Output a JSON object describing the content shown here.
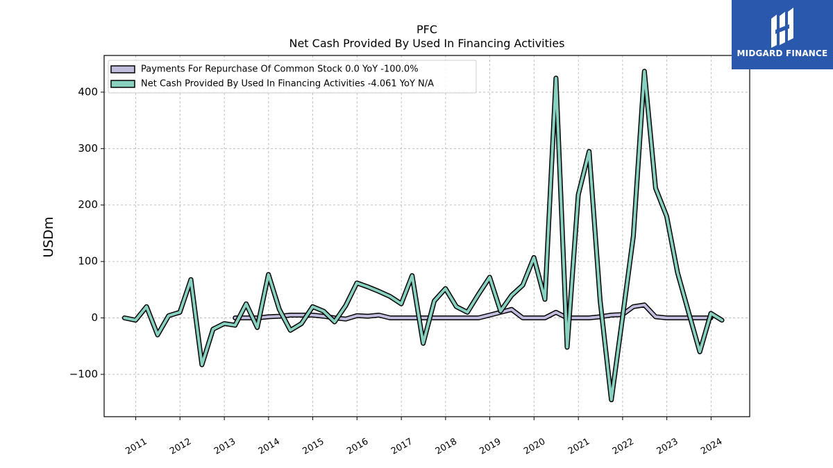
{
  "chart_data": {
    "type": "line",
    "title": "PFC",
    "subtitle": "Net Cash Provided By Used In Financing Activities",
    "xlabel": "",
    "ylabel": "USDm",
    "x_tick_labels": [
      "2011",
      "2012",
      "2013",
      "2014",
      "2015",
      "2016",
      "2017",
      "2018",
      "2019",
      "2020",
      "2021",
      "2022",
      "2023",
      "2024"
    ],
    "y_ticks": [
      -100,
      0,
      100,
      200,
      300,
      400
    ],
    "ylim": [
      -175,
      465
    ],
    "xlim": [
      "2010-04-15",
      "2024-11-15"
    ],
    "grid": true,
    "legend_position": "top-left",
    "series": [
      {
        "name": "Payments For Repurchase Of Common Stock  0.0 YoY -100.0%",
        "color": "#c0bcdc",
        "points": [
          [
            "2013-03-31",
            0
          ],
          [
            "2013-06-30",
            0
          ],
          [
            "2013-09-30",
            0
          ],
          [
            "2013-12-31",
            2
          ],
          [
            "2014-03-31",
            3
          ],
          [
            "2014-06-30",
            5
          ],
          [
            "2014-09-30",
            5
          ],
          [
            "2014-12-31",
            5
          ],
          [
            "2015-03-31",
            3
          ],
          [
            "2015-06-30",
            0
          ],
          [
            "2015-09-30",
            -2
          ],
          [
            "2015-12-31",
            4
          ],
          [
            "2016-03-31",
            3
          ],
          [
            "2016-06-30",
            5
          ],
          [
            "2016-09-30",
            0
          ],
          [
            "2016-12-31",
            0
          ],
          [
            "2017-03-31",
            0
          ],
          [
            "2017-06-30",
            0
          ],
          [
            "2017-09-30",
            0
          ],
          [
            "2017-12-31",
            0
          ],
          [
            "2018-03-31",
            0
          ],
          [
            "2018-06-30",
            0
          ],
          [
            "2018-09-30",
            0
          ],
          [
            "2018-12-31",
            5
          ],
          [
            "2019-03-31",
            10
          ],
          [
            "2019-06-30",
            15
          ],
          [
            "2019-09-30",
            0
          ],
          [
            "2019-12-31",
            0
          ],
          [
            "2020-03-31",
            0
          ],
          [
            "2020-06-30",
            10
          ],
          [
            "2020-09-30",
            0
          ],
          [
            "2020-12-31",
            0
          ],
          [
            "2021-03-31",
            0
          ],
          [
            "2021-06-30",
            2
          ],
          [
            "2021-09-30",
            5
          ],
          [
            "2021-12-31",
            6
          ],
          [
            "2022-03-31",
            20
          ],
          [
            "2022-06-30",
            23
          ],
          [
            "2022-09-30",
            2
          ],
          [
            "2022-12-31",
            0
          ],
          [
            "2023-03-31",
            0
          ],
          [
            "2023-06-30",
            0
          ],
          [
            "2023-09-30",
            0
          ],
          [
            "2023-12-31",
            0
          ]
        ]
      },
      {
        "name": "Net Cash Provided By Used In Financing Activities  -4.061 YoY N/A",
        "color": "#88d0c0",
        "points": [
          [
            "2010-09-30",
            0
          ],
          [
            "2010-12-31",
            -4
          ],
          [
            "2011-03-31",
            20
          ],
          [
            "2011-06-30",
            -30
          ],
          [
            "2011-09-30",
            4
          ],
          [
            "2011-12-31",
            10
          ],
          [
            "2012-03-31",
            68
          ],
          [
            "2012-06-30",
            -83
          ],
          [
            "2012-09-30",
            -20
          ],
          [
            "2012-12-31",
            -10
          ],
          [
            "2013-03-31",
            -13
          ],
          [
            "2013-06-30",
            25
          ],
          [
            "2013-09-30",
            -17
          ],
          [
            "2013-12-31",
            77
          ],
          [
            "2014-03-31",
            15
          ],
          [
            "2014-06-30",
            -22
          ],
          [
            "2014-09-30",
            -10
          ],
          [
            "2014-12-31",
            20
          ],
          [
            "2015-03-31",
            12
          ],
          [
            "2015-06-30",
            -7
          ],
          [
            "2015-09-30",
            22
          ],
          [
            "2015-12-31",
            62
          ],
          [
            "2016-03-31",
            55
          ],
          [
            "2016-06-30",
            47
          ],
          [
            "2016-09-30",
            38
          ],
          [
            "2016-12-31",
            25
          ],
          [
            "2017-03-31",
            75
          ],
          [
            "2017-06-30",
            -45
          ],
          [
            "2017-09-30",
            30
          ],
          [
            "2017-12-31",
            52
          ],
          [
            "2018-03-31",
            20
          ],
          [
            "2018-06-30",
            10
          ],
          [
            "2018-09-30",
            42
          ],
          [
            "2018-12-31",
            72
          ],
          [
            "2019-03-31",
            12
          ],
          [
            "2019-06-30",
            40
          ],
          [
            "2019-09-30",
            58
          ],
          [
            "2019-12-31",
            107
          ],
          [
            "2020-03-31",
            33
          ],
          [
            "2020-06-30",
            425
          ],
          [
            "2020-09-30",
            -52
          ],
          [
            "2020-12-31",
            218
          ],
          [
            "2021-03-31",
            295
          ],
          [
            "2021-06-30",
            30
          ],
          [
            "2021-09-30",
            -145
          ],
          [
            "2021-12-31",
            0
          ],
          [
            "2022-03-31",
            145
          ],
          [
            "2022-06-30",
            437
          ],
          [
            "2022-09-30",
            230
          ],
          [
            "2022-12-31",
            180
          ],
          [
            "2023-03-31",
            80
          ],
          [
            "2023-06-30",
            10
          ],
          [
            "2023-09-30",
            -60
          ],
          [
            "2023-12-31",
            8
          ],
          [
            "2024-03-31",
            -4
          ]
        ]
      }
    ]
  },
  "logo": {
    "text": "MIDGARD FINANCE",
    "bg_color": "#2a58ac"
  }
}
